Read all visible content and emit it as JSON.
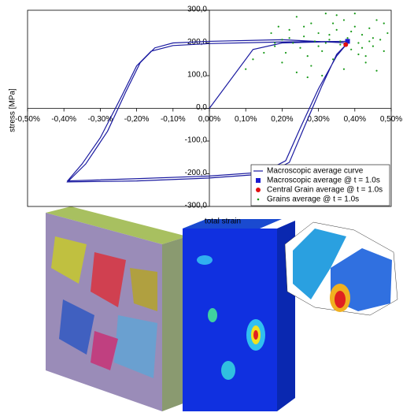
{
  "chart_data": {
    "type": "line",
    "x_label": "total strain",
    "y_label": "stress [MPa]",
    "xlim": [
      -0.5,
      0.5
    ],
    "ylim": [
      -300,
      300
    ],
    "xticks": [
      {
        "value": -0.5,
        "label": "-0,50%"
      },
      {
        "value": -0.4,
        "label": "-0,40%"
      },
      {
        "value": -0.3,
        "label": "-0,30%"
      },
      {
        "value": -0.2,
        "label": "-0,20%"
      },
      {
        "value": -0.1,
        "label": "-0,10%"
      },
      {
        "value": 0,
        "label": "0,00%"
      },
      {
        "value": 0.1,
        "label": "0,10%"
      },
      {
        "value": 0.2,
        "label": "0,20%"
      },
      {
        "value": 0.3,
        "label": "0,30%"
      },
      {
        "value": 0.4,
        "label": "0,40%"
      },
      {
        "value": 0.5,
        "label": "0,50%"
      }
    ],
    "yticks": [
      {
        "value": -300,
        "label": "-300,0"
      },
      {
        "value": -200,
        "label": "-200,0"
      },
      {
        "value": -100,
        "label": "-100,0"
      },
      {
        "value": 0,
        "label": "0,0"
      },
      {
        "value": 100,
        "label": "100,0"
      },
      {
        "value": 200,
        "label": "200,0"
      },
      {
        "value": 300,
        "label": "300,0"
      }
    ],
    "grid": false,
    "legend": "lower right",
    "series": [
      {
        "name": "Macroscopic average curve",
        "type": "line",
        "color": "#1a1aa0",
        "x": [
          0,
          0.12,
          0.2,
          0.38,
          0.2,
          0,
          -0.1,
          -0.16,
          -0.2,
          -0.24,
          -0.3,
          -0.35,
          -0.39,
          -0.2,
          0,
          0.15,
          0.21,
          0.25,
          0.3,
          0.35,
          0.38,
          0.2,
          0,
          -0.1,
          -0.15,
          -0.19,
          -0.23,
          -0.28,
          -0.34,
          -0.39,
          -0.2,
          0,
          0.16,
          0.22,
          0.26,
          0.31,
          0.35,
          0.385
        ],
        "values": [
          0,
          180,
          200,
          205,
          203,
          198,
          192,
          175,
          130,
          40,
          -90,
          -170,
          -222,
          -215,
          -207,
          -195,
          -160,
          -60,
          60,
          160,
          200,
          210,
          205,
          200,
          185,
          140,
          50,
          -70,
          -170,
          -225,
          -222,
          -213,
          -200,
          -165,
          -60,
          70,
          165,
          205
        ]
      },
      {
        "name": "Macroscopic average @ t = 1.0s",
        "type": "square",
        "color": "#1a1ad0",
        "x": [
          0.38
        ],
        "values": [
          205
        ]
      },
      {
        "name": "Central Grain average @ t = 1.0s",
        "type": "circle",
        "color": "#e01010",
        "x": [
          0.375
        ],
        "values": [
          195
        ]
      },
      {
        "name": "Grains average @ t = 1.0s",
        "type": "dot",
        "color": "#1a9a1a",
        "x": [
          0.1,
          0.12,
          0.15,
          0.17,
          0.18,
          0.19,
          0.2,
          0.21,
          0.22,
          0.23,
          0.24,
          0.25,
          0.26,
          0.27,
          0.28,
          0.29,
          0.3,
          0.31,
          0.32,
          0.33,
          0.34,
          0.35,
          0.36,
          0.37,
          0.38,
          0.39,
          0.4,
          0.41,
          0.42,
          0.43,
          0.44,
          0.45,
          0.46,
          0.47,
          0.48,
          0.49,
          0.2,
          0.24,
          0.28,
          0.31,
          0.34,
          0.37,
          0.4,
          0.43,
          0.46,
          0.22,
          0.26,
          0.3,
          0.33,
          0.36,
          0.39,
          0.42,
          0.45,
          0.48,
          0.27,
          0.35,
          0.41,
          0.18,
          0.32,
          0.44
        ],
        "values": [
          120,
          150,
          170,
          230,
          190,
          250,
          210,
          170,
          240,
          200,
          280,
          185,
          220,
          160,
          260,
          205,
          230,
          175,
          290,
          210,
          150,
          240,
          195,
          270,
          215,
          180,
          250,
          200,
          225,
          160,
          245,
          190,
          270,
          210,
          175,
          230,
          140,
          110,
          130,
          100,
          260,
          120,
          290,
          140,
          115,
          215,
          250,
          190,
          225,
          205,
          235,
          185,
          215,
          260,
          95,
          285,
          165,
          200,
          200,
          205
        ]
      }
    ]
  }
}
